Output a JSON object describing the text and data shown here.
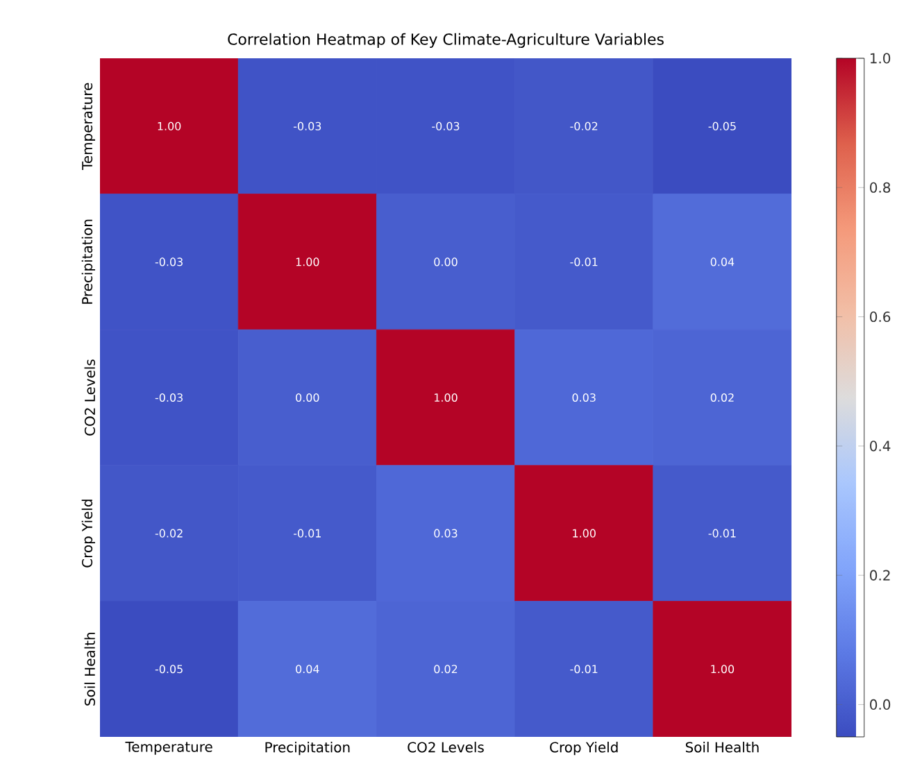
{
  "chart_data": {
    "type": "heatmap",
    "title": "Correlation Heatmap of Key Climate-Agriculture Variables",
    "categories": [
      "Temperature",
      "Precipitation",
      "CO2 Levels",
      "Crop Yield",
      "Soil Health"
    ],
    "y_categories": [
      "Temperature",
      "Precipitation",
      "CO2 Levels",
      "Crop Yield",
      "Soil Health"
    ],
    "cells": [
      [
        1.0,
        -0.03,
        -0.03,
        -0.02,
        -0.05
      ],
      [
        -0.03,
        1.0,
        0.0,
        -0.01,
        0.04
      ],
      [
        -0.03,
        0.0,
        1.0,
        0.03,
        0.02
      ],
      [
        -0.02,
        -0.01,
        0.03,
        1.0,
        -0.01
      ],
      [
        -0.05,
        0.04,
        0.02,
        -0.01,
        1.0
      ]
    ],
    "cell_labels": [
      [
        "1.00",
        "-0.03",
        "-0.03",
        "-0.02",
        "-0.05"
      ],
      [
        "-0.03",
        "1.00",
        "0.00",
        "-0.01",
        "0.04"
      ],
      [
        "-0.03",
        "0.00",
        "1.00",
        "0.03",
        "0.02"
      ],
      [
        "-0.02",
        "-0.01",
        "0.03",
        "1.00",
        "-0.01"
      ],
      [
        "-0.05",
        "0.04",
        "0.02",
        "-0.01",
        "1.00"
      ]
    ],
    "clim": [
      -0.05,
      1.0
    ],
    "cticks": [
      {
        "value": 0,
        "label": "0.0"
      },
      {
        "value": 0.2,
        "label": "0.2"
      },
      {
        "value": 0.4,
        "label": "0.4"
      },
      {
        "value": 0.6,
        "label": "0.6"
      },
      {
        "value": 0.8,
        "label": "0.8"
      },
      {
        "value": 1.0,
        "label": "1.0"
      }
    ]
  }
}
